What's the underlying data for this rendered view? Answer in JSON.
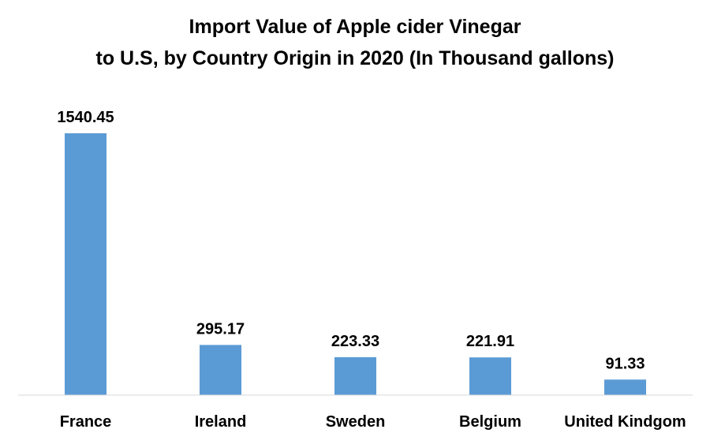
{
  "chart_data": {
    "type": "bar",
    "title": [
      "Import Value of Apple cider Vinegar",
      "to U.S, by Country Origin in 2020 (In Thousand gallons)"
    ],
    "categories": [
      "France",
      "Ireland",
      "Sweden",
      "Belgium",
      "United Kindgom"
    ],
    "values": [
      1540.45,
      295.17,
      223.33,
      221.91,
      91.33
    ],
    "data_labels": [
      "1540.45",
      "295.17",
      "223.33",
      "221.91",
      "91.33"
    ],
    "xlabel": "",
    "ylabel": "",
    "ylim": [
      0,
      1540.45
    ],
    "grid": false,
    "legend": "none",
    "bar_color": "#5B9BD5",
    "axis_color": "#D9D9D9"
  }
}
